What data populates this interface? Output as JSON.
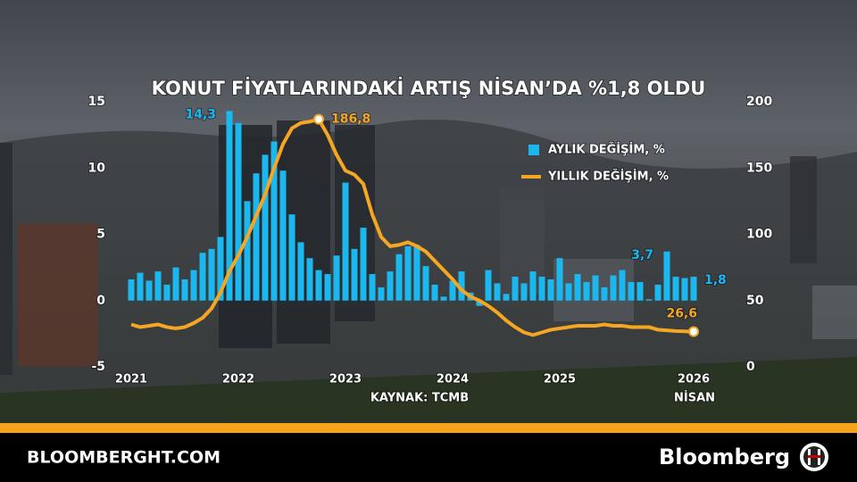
{
  "chart_data": {
    "type": "bar_line",
    "title": "KONUT FİYATLARINDAKİ ARTIŞ NİSAN’DA %1,8 OLDU",
    "source": "KAYNAK: TCMB",
    "x_note": "NİSAN",
    "categories": [
      "2021",
      null,
      null,
      null,
      null,
      null,
      null,
      null,
      null,
      null,
      null,
      null,
      "2022",
      null,
      null,
      null,
      null,
      null,
      null,
      null,
      null,
      null,
      null,
      null,
      "2023",
      null,
      null,
      null,
      null,
      null,
      null,
      null,
      null,
      null,
      null,
      null,
      "2024",
      null,
      null,
      null,
      null,
      null,
      null,
      null,
      null,
      null,
      null,
      null,
      "2025",
      null,
      null,
      null,
      null,
      null,
      null,
      null,
      null,
      null,
      null,
      null,
      null,
      null,
      null,
      "2026"
    ],
    "series": [
      {
        "name": "AYLIK DEĞİŞİM, %",
        "type": "bar",
        "color": "#1bb8f0",
        "values": [
          1.6,
          2.1,
          1.5,
          2.2,
          1.2,
          2.5,
          1.6,
          2.3,
          3.6,
          3.9,
          4.8,
          14.3,
          13.4,
          7.5,
          9.6,
          11.0,
          12.0,
          9.8,
          6.5,
          4.4,
          3.2,
          2.3,
          2.0,
          3.4,
          8.9,
          3.9,
          5.5,
          2.0,
          1.0,
          2.2,
          3.5,
          4.1,
          4.2,
          2.6,
          1.2,
          0.3,
          1.5,
          2.2,
          0.6,
          -0.4,
          2.3,
          1.3,
          0.5,
          1.8,
          1.3,
          2.2,
          1.8,
          1.6,
          3.2,
          1.3,
          2.0,
          1.4,
          1.9,
          1.0,
          1.9,
          2.3,
          1.4,
          1.4,
          0.1,
          1.2,
          3.7,
          1.8,
          1.7,
          1.8
        ],
        "value_labels": [
          null,
          null,
          null,
          null,
          null,
          null,
          null,
          null,
          null,
          null,
          null,
          "14,3",
          null,
          null,
          null,
          null,
          null,
          null,
          null,
          null,
          null,
          null,
          null,
          null,
          null,
          null,
          null,
          null,
          null,
          null,
          null,
          null,
          null,
          null,
          null,
          null,
          null,
          null,
          null,
          null,
          null,
          null,
          null,
          null,
          null,
          null,
          null,
          null,
          null,
          null,
          null,
          null,
          null,
          null,
          null,
          null,
          null,
          null,
          null,
          null,
          "3,7",
          null,
          null,
          "1,8"
        ]
      },
      {
        "name": "YILLIK DEĞİŞİM, %",
        "type": "line",
        "axis": "y2",
        "color": "#f5a623",
        "values": [
          32,
          30,
          31,
          32,
          30,
          29,
          30,
          33,
          37,
          44,
          56,
          72,
          84,
          98,
          114,
          130,
          150,
          168,
          180,
          184,
          185,
          186.8,
          175,
          160,
          148,
          145,
          138,
          115,
          98,
          91,
          92,
          94,
          91,
          87,
          80,
          73,
          66,
          58,
          53,
          50,
          46,
          41,
          35,
          30,
          26,
          24,
          26,
          28,
          29,
          30,
          31,
          31,
          31,
          32,
          31,
          31,
          30,
          30,
          30,
          28,
          27.5,
          27,
          26.8,
          26.6
        ],
        "value_labels": [
          null,
          null,
          null,
          null,
          null,
          null,
          null,
          null,
          null,
          null,
          null,
          null,
          null,
          null,
          null,
          null,
          null,
          null,
          null,
          null,
          null,
          "186,8",
          null,
          null,
          null,
          null,
          null,
          null,
          null,
          null,
          null,
          null,
          null,
          null,
          null,
          null,
          null,
          null,
          null,
          null,
          null,
          null,
          null,
          null,
          null,
          null,
          null,
          null,
          null,
          null,
          null,
          null,
          null,
          null,
          null,
          null,
          null,
          null,
          null,
          null,
          null,
          null,
          null,
          "26,6"
        ]
      }
    ],
    "ylim": [
      -5,
      15
    ],
    "yticks": [
      -5,
      0,
      5,
      10,
      15
    ],
    "y2lim": [
      0,
      200
    ],
    "y2ticks": [
      0,
      50,
      100,
      150,
      200
    ],
    "legend": "upper right"
  },
  "footer": {
    "site": "BLOOMBERGHT.COM",
    "brand": "Bloomberg"
  }
}
